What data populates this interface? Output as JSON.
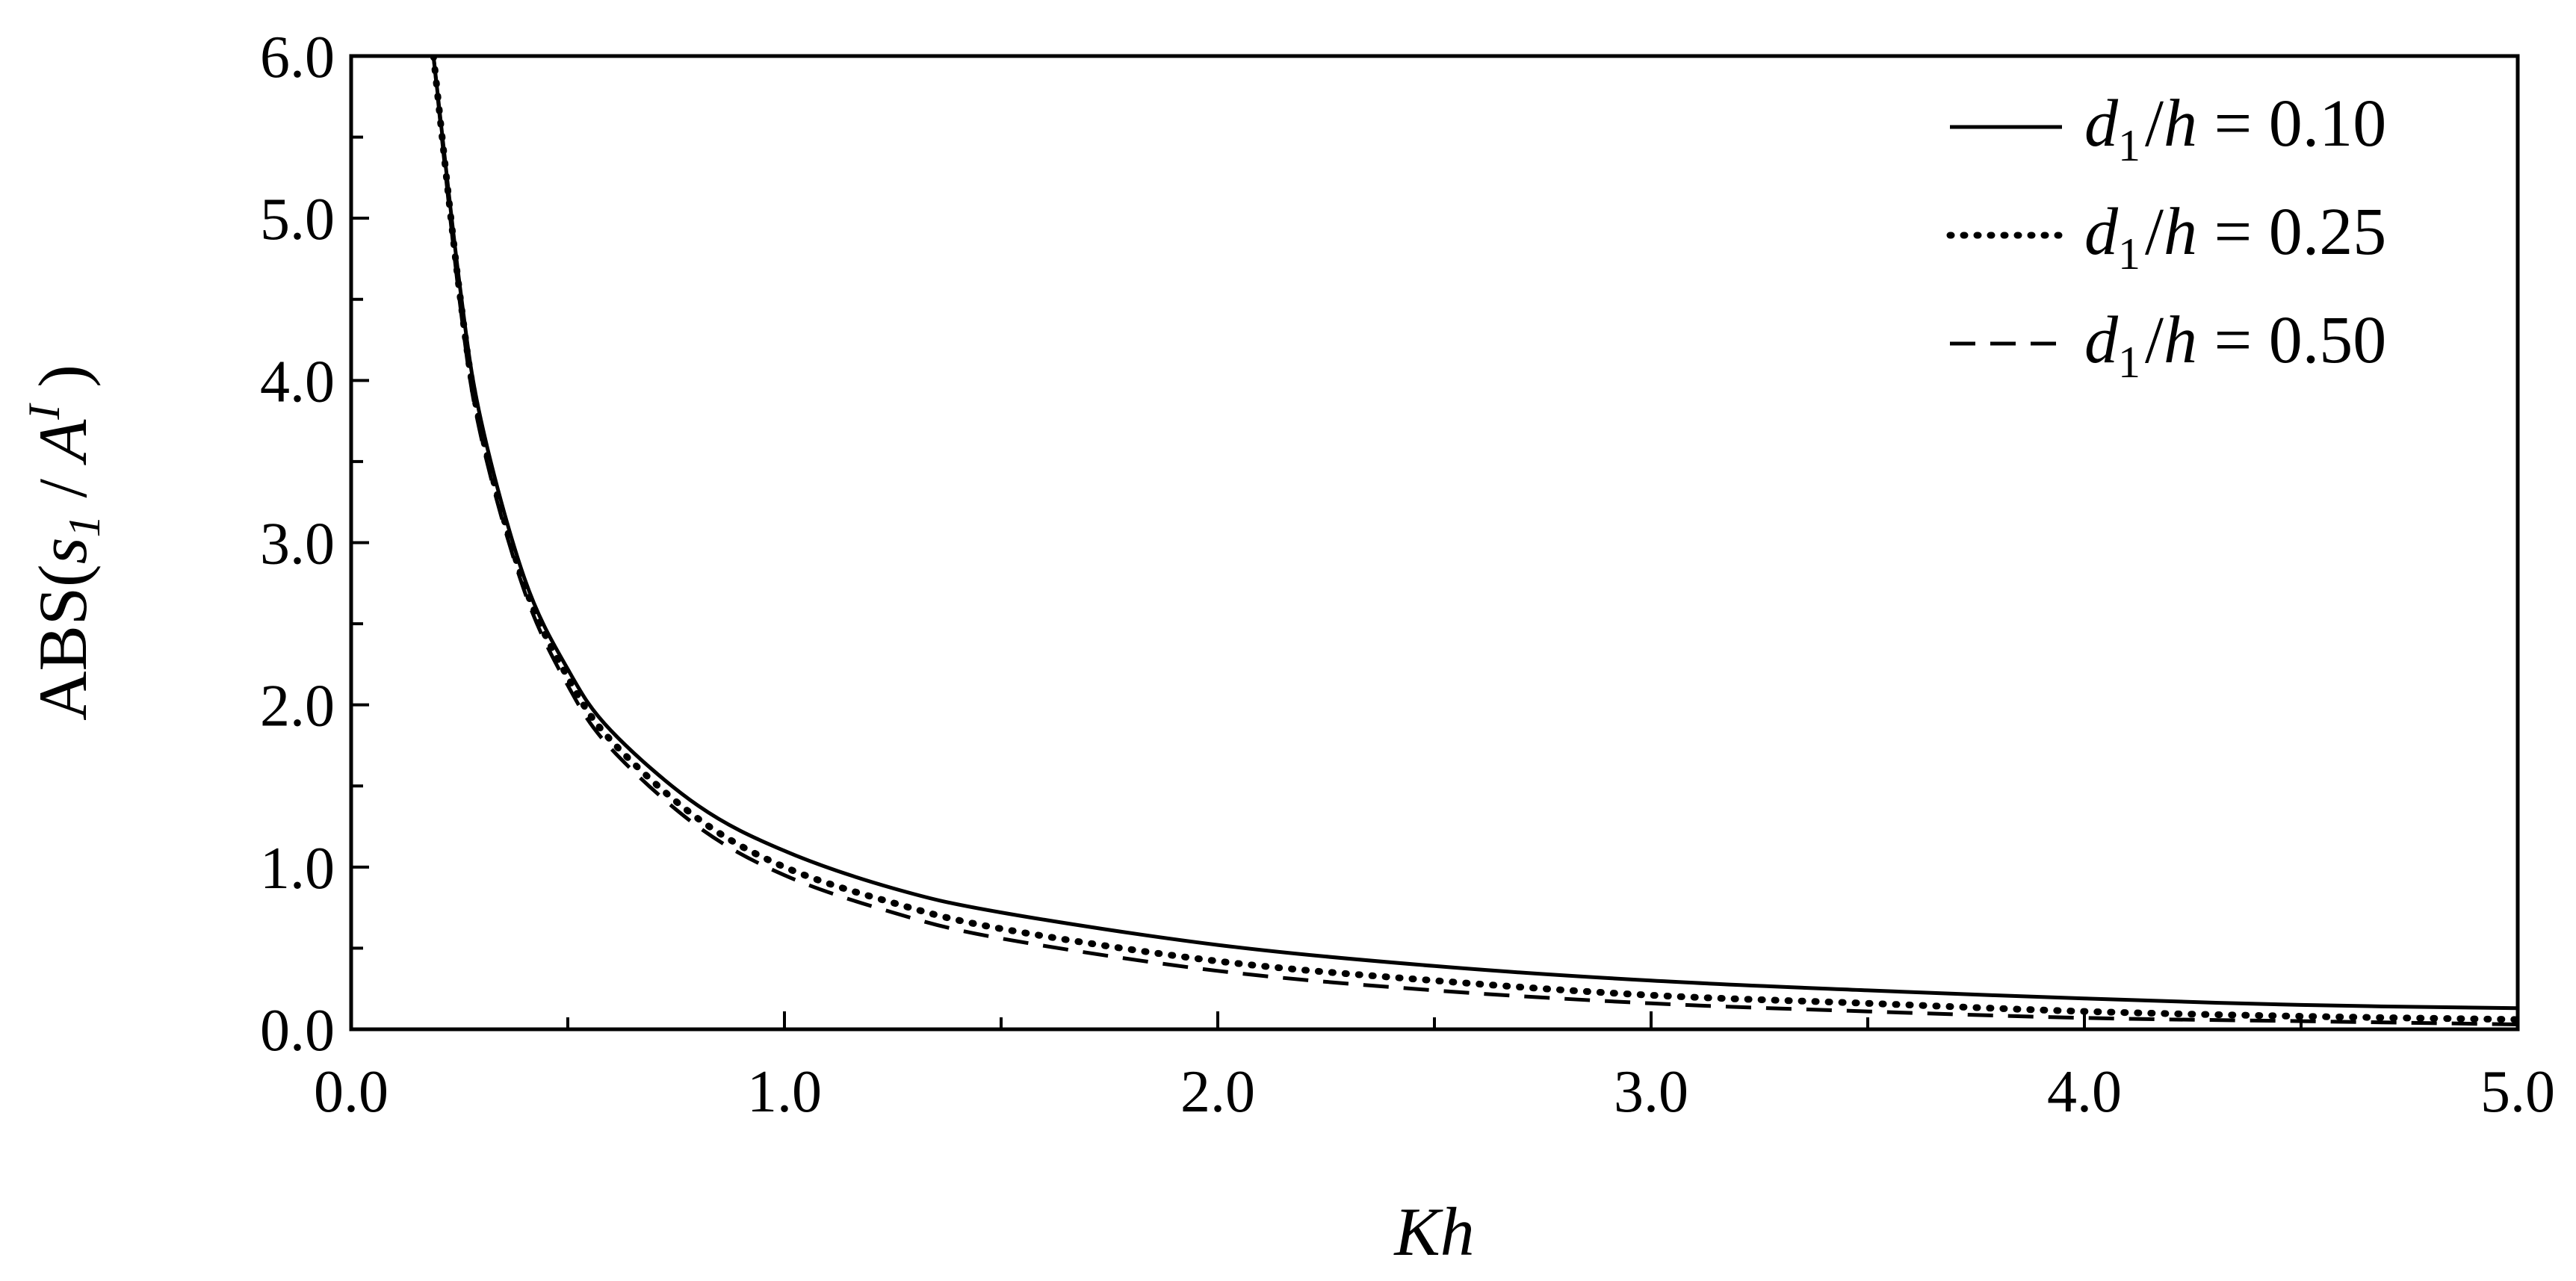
{
  "chart_data": {
    "type": "line",
    "title": "",
    "xlabel": "Kh",
    "ylabel": {
      "prefix": "ABS(",
      "num": "s",
      "num_sub": "1",
      "sep": " / ",
      "den": "A",
      "den_sup": "I",
      "suffix": " )"
    },
    "xlim": [
      0,
      5
    ],
    "ylim": [
      0,
      6
    ],
    "x_ticks": [
      "0.0",
      "1.0",
      "2.0",
      "3.0",
      "4.0",
      "5.0"
    ],
    "y_ticks": [
      "0.0",
      "1.0",
      "2.0",
      "3.0",
      "4.0",
      "5.0",
      "6.0"
    ],
    "grid": false,
    "legend_position": "top-right",
    "series": [
      {
        "name": "d1/h = 0.10",
        "legend": {
          "var": "d",
          "sub": "1",
          "den": "h",
          "eq": " = ",
          "val": "0.10"
        },
        "style": "solid",
        "color": "#000000",
        "x": [
          0.19,
          0.25,
          0.3,
          0.4,
          0.5,
          0.6,
          0.8,
          1.0,
          1.25,
          1.5,
          2.0,
          2.5,
          3.0,
          3.5,
          4.0,
          4.5,
          5.0
        ],
        "y": [
          6.0,
          4.6,
          3.75,
          2.78,
          2.22,
          1.84,
          1.38,
          1.1,
          0.87,
          0.72,
          0.52,
          0.39,
          0.3,
          0.24,
          0.19,
          0.15,
          0.13
        ]
      },
      {
        "name": "d1/h = 0.25",
        "legend": {
          "var": "d",
          "sub": "1",
          "den": "h",
          "eq": " = ",
          "val": "0.25"
        },
        "style": "dotted",
        "color": "#000000",
        "x": [
          0.19,
          0.25,
          0.3,
          0.4,
          0.5,
          0.6,
          0.8,
          1.0,
          1.25,
          1.5,
          2.0,
          2.5,
          3.0,
          3.5,
          4.0,
          4.5,
          5.0
        ],
        "y": [
          6.0,
          4.55,
          3.7,
          2.74,
          2.17,
          1.78,
          1.3,
          1.0,
          0.78,
          0.62,
          0.42,
          0.3,
          0.21,
          0.16,
          0.11,
          0.08,
          0.06
        ]
      },
      {
        "name": "d1/h = 0.50",
        "legend": {
          "var": "d",
          "sub": "1",
          "den": "h",
          "eq": " = ",
          "val": "0.50"
        },
        "style": "dashed",
        "color": "#000000",
        "x": [
          0.19,
          0.25,
          0.3,
          0.4,
          0.5,
          0.6,
          0.8,
          1.0,
          1.25,
          1.5,
          2.0,
          2.5,
          3.0,
          3.5,
          4.0,
          4.5,
          5.0
        ],
        "y": [
          6.0,
          4.5,
          3.65,
          2.7,
          2.12,
          1.73,
          1.25,
          0.95,
          0.72,
          0.56,
          0.36,
          0.24,
          0.16,
          0.11,
          0.07,
          0.05,
          0.03
        ]
      }
    ]
  }
}
